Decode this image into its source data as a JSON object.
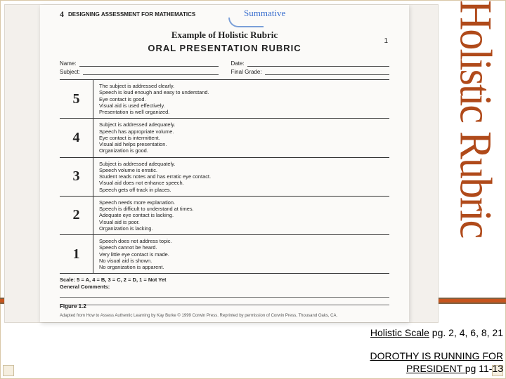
{
  "slide": {
    "vertical_title": "Holistic Rubric",
    "accent_color": "#c7551e",
    "border_color": "#806040"
  },
  "captions": {
    "line1_link": "Holistic Scale",
    "line1_rest": " pg. 2, 4, 6, 8, 21",
    "line2_link": "DOROTHY IS RUNNING FOR PRESIDENT ",
    "line2_rest": " pg 11-13"
  },
  "rubric": {
    "page_number": "4",
    "section_label": "DESIGNING ASSESSMENT FOR MATHEMATICS",
    "handwritten_note": "Summative",
    "example_heading": "Example of Holistic Rubric",
    "title": "ORAL PRESENTATION RUBRIC",
    "corner_mark": "1",
    "fields": {
      "name": "Name:",
      "subject": "Subject:",
      "date": "Date:",
      "final_grade": "Final Grade:"
    },
    "rows": [
      {
        "score": "5",
        "text": "The subject is addressed clearly.\nSpeech is loud enough and easy to understand.\nEye contact is good.\nVisual aid is used effectively.\nPresentation is well organized."
      },
      {
        "score": "4",
        "text": "Subject is addressed adequately.\nSpeech has appropriate volume.\nEye contact is intermittent.\nVisual aid helps presentation.\nOrganization is good."
      },
      {
        "score": "3",
        "text": "Subject is addressed adequately.\nSpeech volume is erratic.\nStudent reads notes and has erratic eye contact.\nVisual aid does not enhance speech.\nSpeech gets off track in places."
      },
      {
        "score": "2",
        "text": "Speech needs more explanation.\nSpeech is difficult to understand at times.\nAdequate eye contact is lacking.\nVisual aid is poor.\nOrganization is lacking."
      },
      {
        "score": "1",
        "text": "Speech does not address topic.\nSpeech cannot be heard.\nVery little eye contact is made.\nNo visual aid is shown.\nNo organization is apparent."
      }
    ],
    "scale_line": "Scale:  5 = A,  4 = B,  3 = C,  2 = D,  1 = Not Yet",
    "general_comments_label": "General Comments:",
    "figure_caption": "Figure 1.2",
    "credit": "Adapted from How to Assess Authentic Learning by Kay Burke © 1999 Corwin Press. Reprinted by permission of Corwin Press, Thousand Oaks, CA."
  }
}
